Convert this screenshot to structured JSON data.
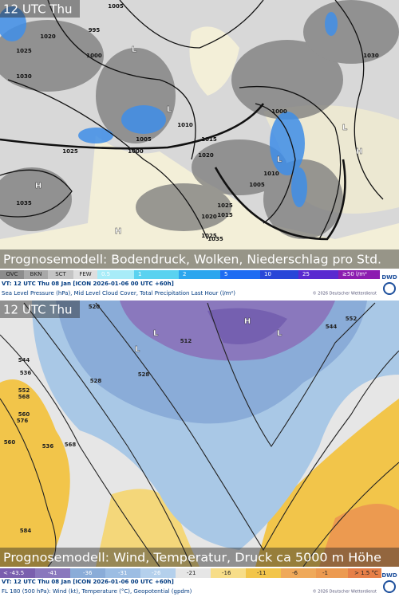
{
  "panels": [
    {
      "time": "12 UTC Thu",
      "title": "Prognosemodell: Bodendruck, Wolken, Niederschlag pro Std.",
      "legend": [
        "OVC",
        "BKN",
        "SCT",
        "FEW",
        "0.5",
        "1",
        "2",
        "5",
        "10",
        "25",
        "≥50 l/m²"
      ],
      "valid": "VT: 12 UTC Thu  08 Jan [ICON 2026-01-06 00 UTC +60h]",
      "description": "Sea Level Pressure (hPa), Mid Level Cloud Cover, Total Precipitation Last Hour (l/m²)",
      "copyright": "© 2026 Deutscher Wetterdienst",
      "logo": "DWD",
      "map_labels": [
        "1005",
        "995",
        "1020",
        "1025",
        "1000",
        "1030",
        "1025",
        "1005",
        "1000",
        "1035",
        "1010",
        "1015",
        "1020",
        "1025",
        "1000",
        "1005",
        "1010",
        "1015",
        "1020",
        "1025",
        "1035",
        "1030",
        "L",
        "L",
        "L",
        "H",
        "H",
        "H",
        "L"
      ]
    },
    {
      "time": "12 UTC Thu",
      "title": "Prognosemodell: Wind, Temperatur, Druck ca 5000 m Höhe",
      "legend": [
        "< -43.5",
        "-41",
        "-36",
        "-31",
        "-26",
        "-21",
        "-16",
        "-11",
        "-6",
        "-1",
        "> 1.5 °C"
      ],
      "valid": "VT: 12 UTC Thu  08 Jan [ICON 2026-01-06 00 UTC +60h]",
      "description": "FL 180 (500 hPa): Wind (kt), Temperature (°C), Geopotential (gpdm)",
      "copyright": "© 2026 Deutscher Wetterdienst",
      "logo": "DWD",
      "map_labels": [
        "520",
        "528",
        "536",
        "544",
        "552",
        "560",
        "568",
        "576",
        "584",
        "512",
        "528",
        "536",
        "544",
        "552",
        "560",
        "568",
        "L",
        "L",
        "H",
        "L"
      ]
    }
  ]
}
